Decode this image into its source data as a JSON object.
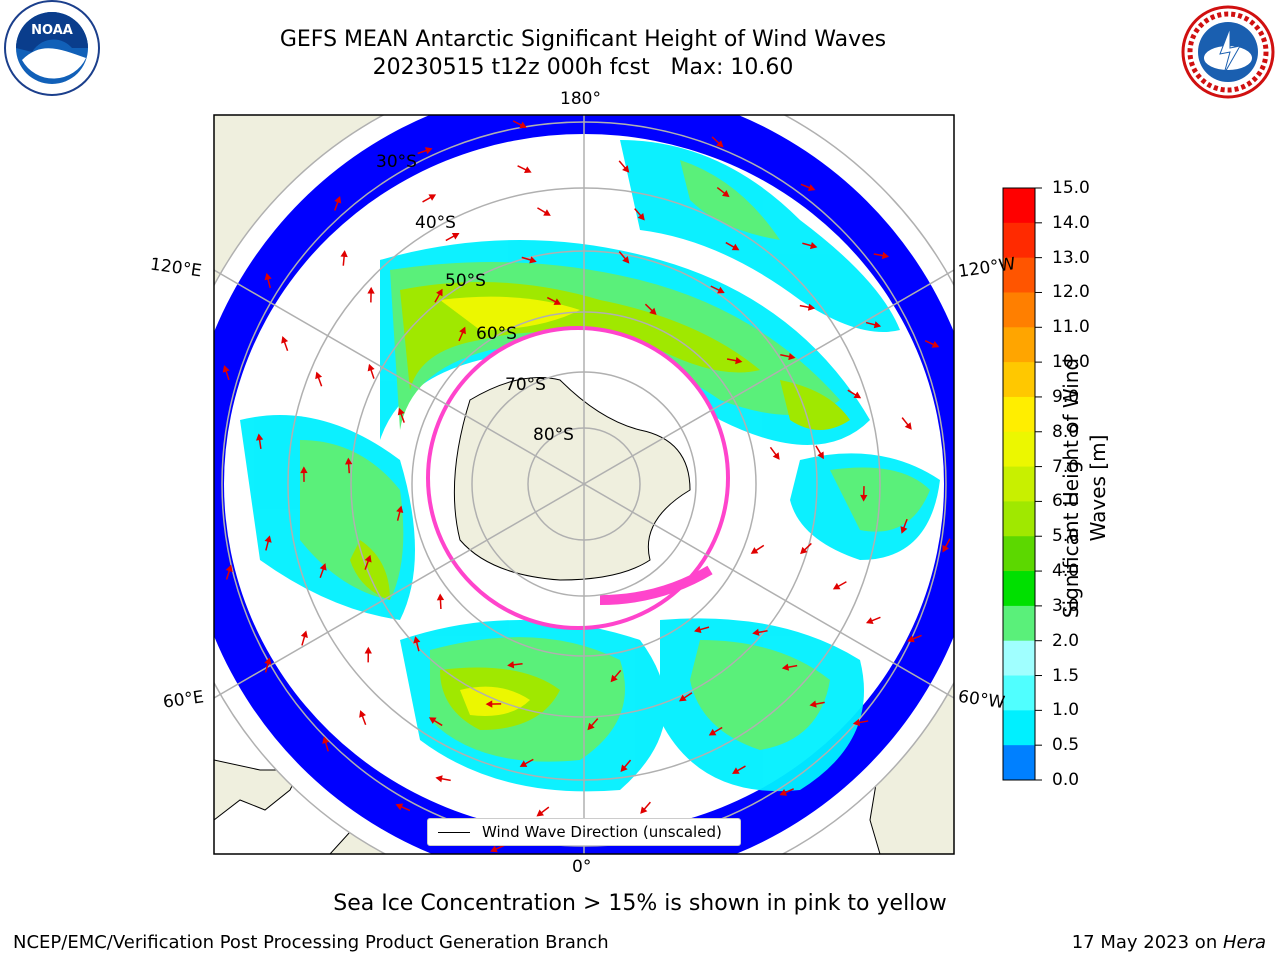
{
  "title": {
    "line1": "GEFS MEAN Antarctic Significant Height of Wind Waves",
    "line2": "20230515 t12z 000h fcst   Max: 10.60"
  },
  "logos": {
    "left": {
      "name": "NOAA",
      "text": "NOAA"
    },
    "right": {
      "name": "NATIONAL WEATHER SERVICE"
    }
  },
  "map": {
    "projection": "south-polar-stereographic",
    "longitude_labels": {
      "top": "180°",
      "bottom": "0°",
      "left_upper": "120°E",
      "left_lower": "60°E",
      "right_upper": "120°W",
      "right_lower": "60°W"
    },
    "latitude_labels": [
      "30°S",
      "40°S",
      "50°S",
      "60°S",
      "70°S",
      "80°S"
    ],
    "legend": "Wind Wave Direction (unscaled)",
    "colors": {
      "land": "#efefde",
      "ice_edge": "#ff44cc",
      "arrow": "#e00000",
      "grid": "#b0b0b0"
    }
  },
  "colorbar": {
    "label": "Significant Height of Wind Waves [m]",
    "label_line1": "Significant Height of Wind",
    "label_line2": "Waves [m]",
    "ticks": [
      "15.0",
      "14.0",
      "13.0",
      "12.0",
      "11.0",
      "10.0",
      "9.0",
      "8.0",
      "7.0",
      "6.0",
      "5.0",
      "4.0",
      "3.0",
      "2.0",
      "1.5",
      "1.0",
      "0.5",
      "0.0"
    ],
    "colors": [
      "#ff0000",
      "#ff2a00",
      "#ff5500",
      "#ff7f00",
      "#ffa500",
      "#ffc800",
      "#ffee00",
      "#ecf700",
      "#c8f000",
      "#a0e800",
      "#5cd800",
      "#00e000",
      "#5af07a",
      "#a0ffff",
      "#50ffff",
      "#00f0ff",
      "#0080ff",
      "#0000ff"
    ]
  },
  "ice_note": "Sea Ice Concentration > 15% is shown in pink to yellow",
  "footer": {
    "left": "NCEP/EMC/Verification Post Processing Product Generation Branch",
    "right_prefix": "17 May 2023 on ",
    "right_em": "Hera"
  }
}
